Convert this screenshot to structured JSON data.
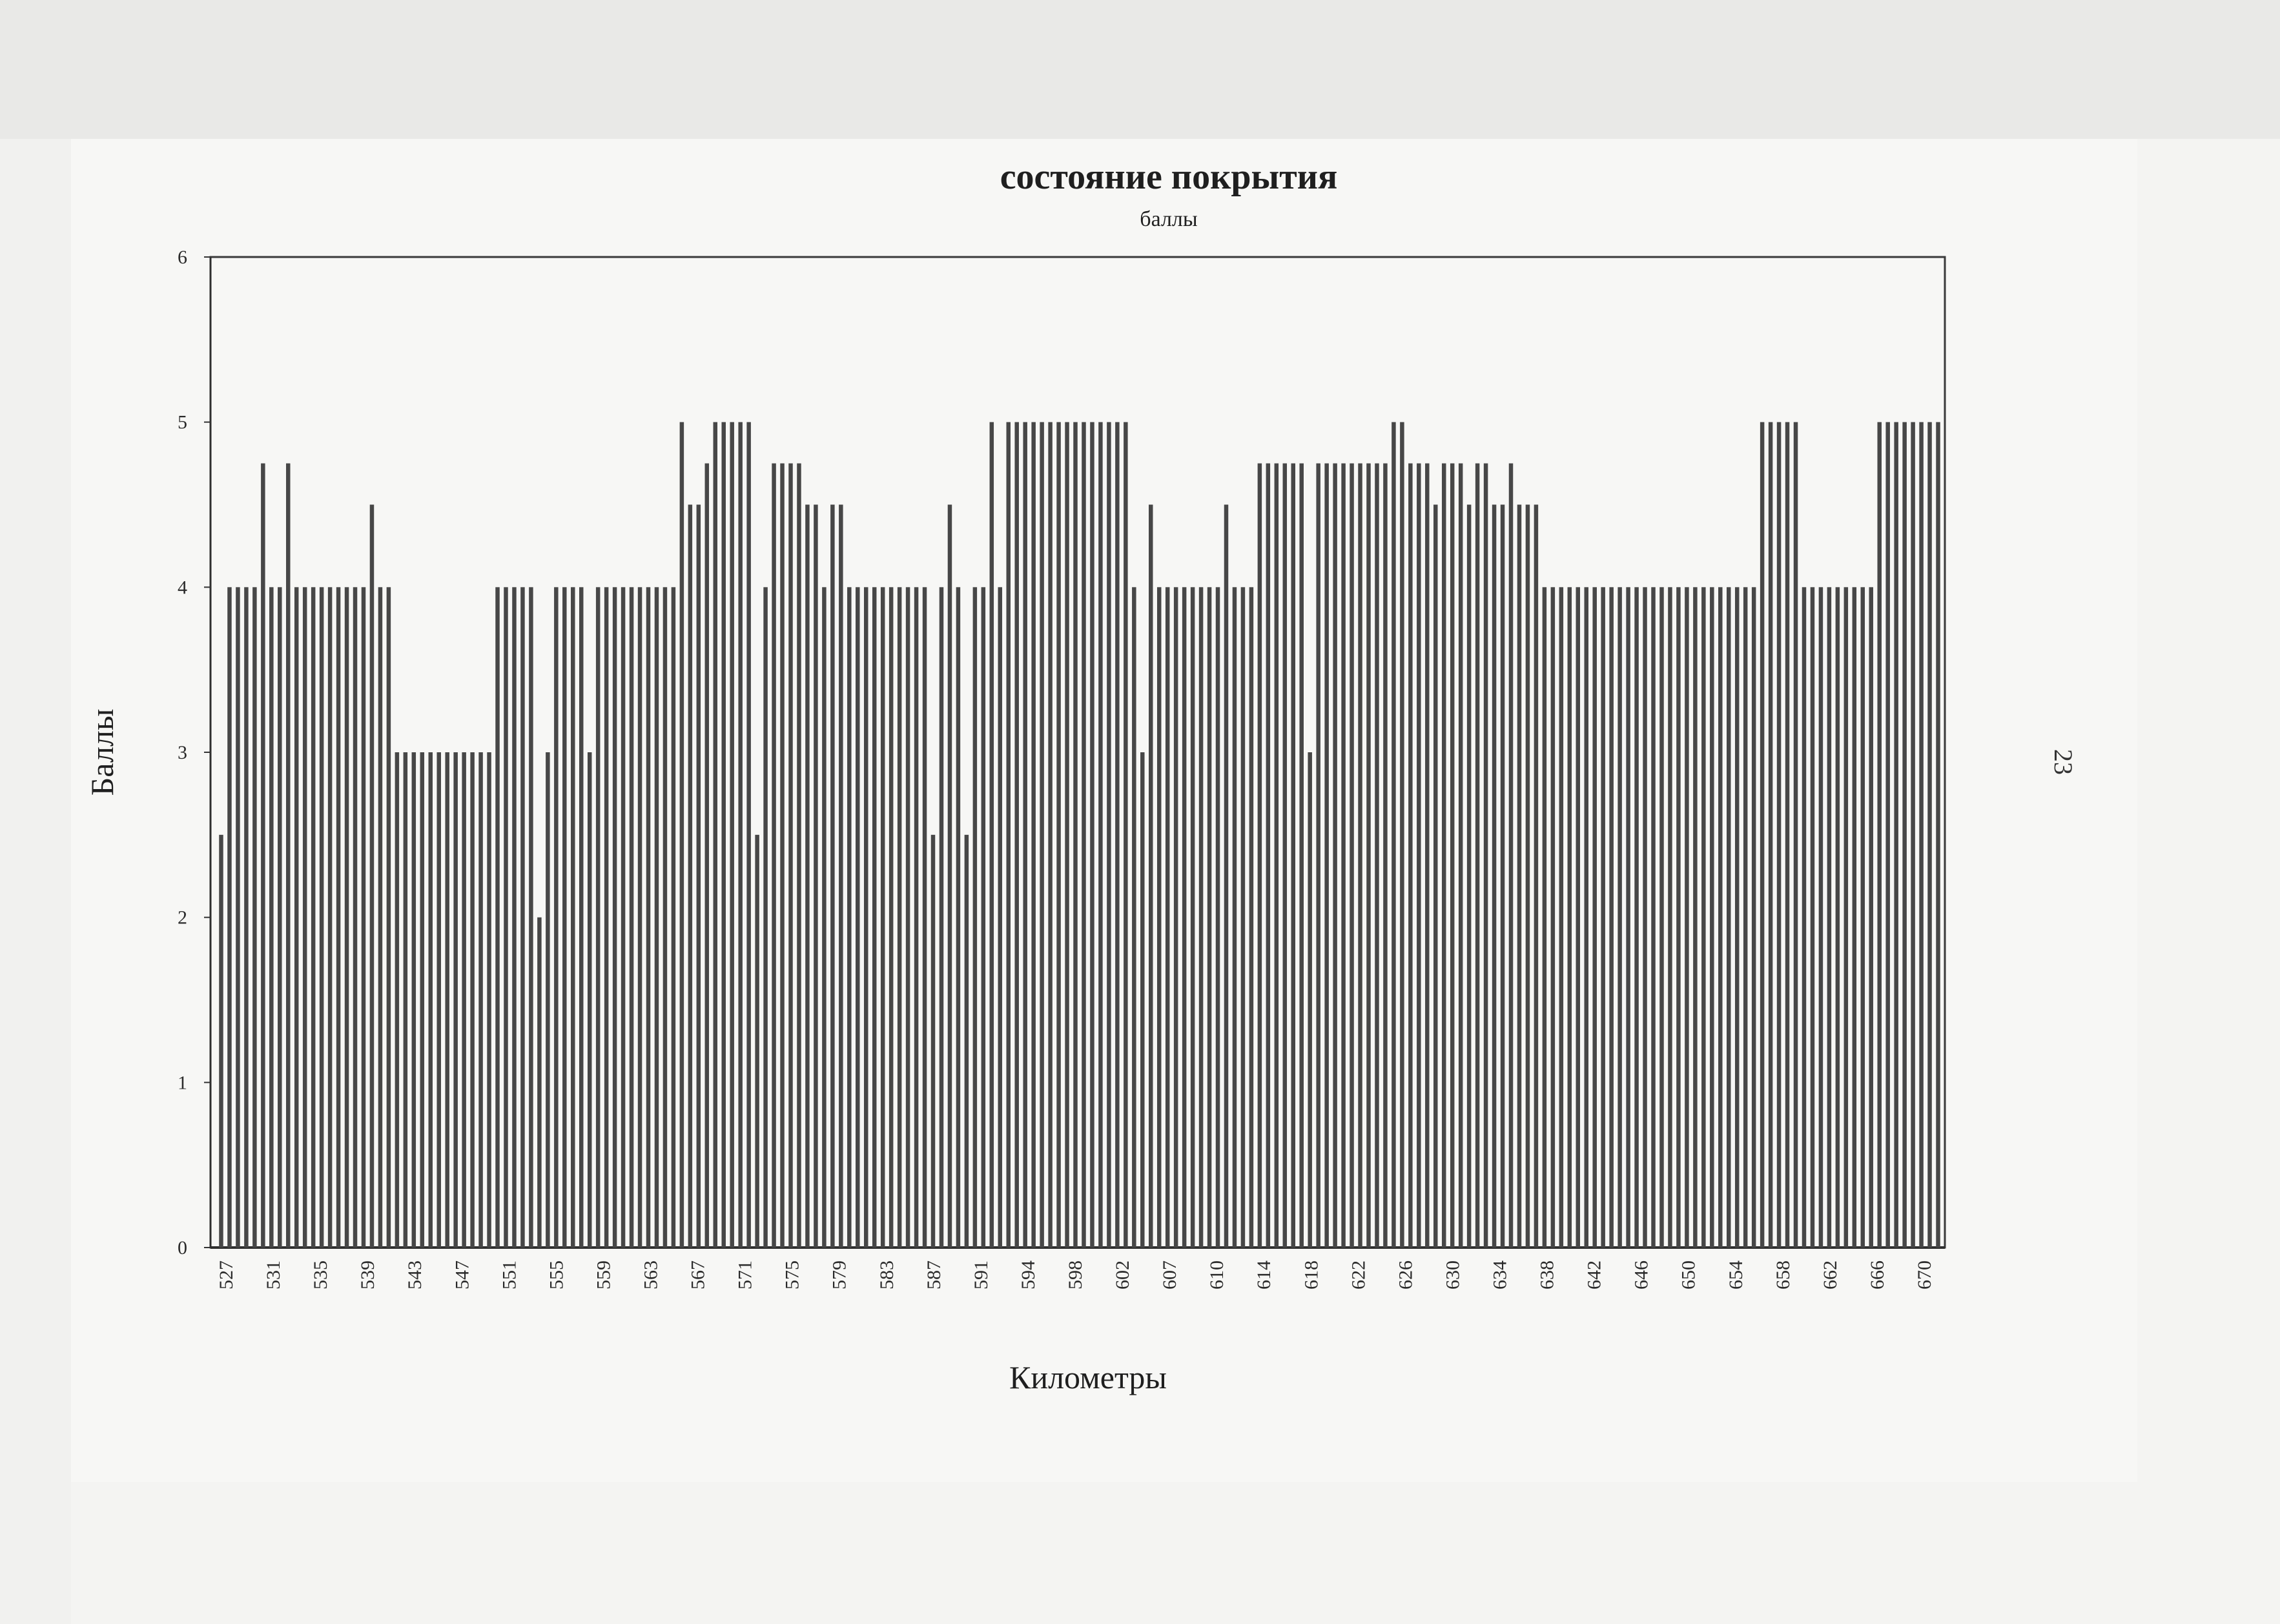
{
  "margin_note": "23",
  "chart_data": {
    "type": "bar",
    "title": "состояние покрытия",
    "subtitle": "баллы",
    "xlabel": "Километры",
    "ylabel": "Баллы",
    "ylim": [
      0,
      6
    ],
    "yticks": [
      "0",
      "1",
      "2",
      "3",
      "4",
      "5",
      "6"
    ],
    "grid": false,
    "legend": "none",
    "bar_color": "#474747",
    "x_tick_labels": [
      "527",
      "531",
      "535",
      "539",
      "543",
      "547",
      "551",
      "555",
      "559",
      "563",
      "567",
      "571",
      "575",
      "579",
      "583",
      "587",
      "591",
      "594",
      "598",
      "602",
      "607",
      "610",
      "614",
      "618",
      "622",
      "626",
      "630",
      "634",
      "638",
      "642",
      "646",
      "650",
      "654",
      "658",
      "662",
      "666",
      "670"
    ],
    "values": [
      2.5,
      4,
      4,
      4,
      4,
      4.75,
      4,
      4,
      4.75,
      4,
      4,
      4,
      4,
      4,
      4,
      4,
      4,
      4,
      4.5,
      4,
      4,
      3,
      3,
      3,
      3,
      3,
      3,
      3,
      3,
      3,
      3,
      3,
      3,
      4,
      4,
      4,
      4,
      4,
      2,
      3,
      4,
      4,
      4,
      4,
      3,
      4,
      4,
      4,
      4,
      4,
      4,
      4,
      4,
      4,
      4,
      5,
      4.5,
      4.5,
      4.75,
      5,
      5,
      5,
      5,
      5,
      2.5,
      4,
      4.75,
      4.75,
      4.75,
      4.75,
      4.5,
      4.5,
      4,
      4.5,
      4.5,
      4,
      4,
      4,
      4,
      4,
      4,
      4,
      4,
      4,
      4,
      2.5,
      4,
      4.5,
      4,
      2.5,
      4,
      4,
      5,
      4,
      5,
      5,
      5,
      5,
      5,
      5,
      5,
      5,
      5,
      5,
      5,
      5,
      5,
      5,
      5,
      4,
      3,
      4.5,
      4,
      4,
      4,
      4,
      4,
      4,
      4,
      4,
      4.5,
      4,
      4,
      4,
      4.75,
      4.75,
      4.75,
      4.75,
      4.75,
      4.75,
      3,
      4.75,
      4.75,
      4.75,
      4.75,
      4.75,
      4.75,
      4.75,
      4.75,
      4.75,
      5,
      5,
      4.75,
      4.75,
      4.75,
      4.5,
      4.75,
      4.75,
      4.75,
      4.5,
      4.75,
      4.75,
      4.5,
      4.5,
      4.75,
      4.5,
      4.5,
      4.5,
      4,
      4,
      4,
      4,
      4,
      4,
      4,
      4,
      4,
      4,
      4,
      4,
      4,
      4,
      4,
      4,
      4,
      4,
      4,
      4,
      4,
      4,
      4,
      4,
      4,
      4,
      5,
      5,
      5,
      5,
      5,
      4,
      4,
      4,
      4,
      4,
      4,
      4,
      4,
      4,
      5,
      5,
      5,
      5,
      5,
      5,
      5,
      5
    ]
  }
}
